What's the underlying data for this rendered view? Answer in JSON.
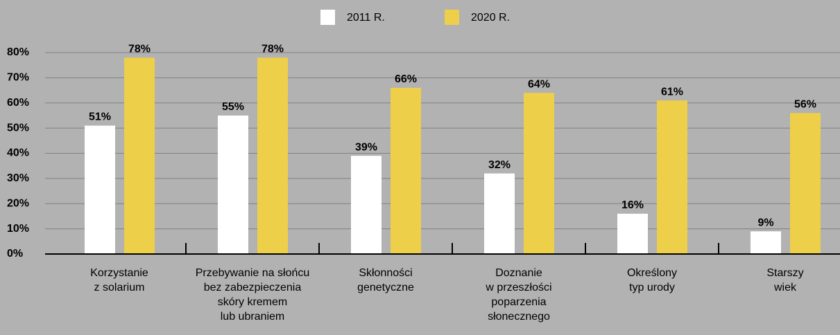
{
  "chart_data": {
    "type": "bar",
    "categories": [
      "Korzystanie\nz solarium",
      "Przebywanie na słońcu\nbez zabezpieczenia\nskóry kremem\nlub ubraniem",
      "Skłonności\ngenetyczne",
      "Doznanie\nw przeszłości\npoparzenia\nsłonecznego",
      "Określony\ntyp urody",
      "Starszy\nwiek"
    ],
    "series": [
      {
        "name": "2011 R.",
        "color": "#ffffff",
        "values": [
          51,
          55,
          39,
          32,
          16,
          9
        ],
        "value_labels": [
          "51%",
          "55%",
          "39%",
          "32%",
          "16%",
          "9%"
        ]
      },
      {
        "name": "2020 R.",
        "color": "#edcf4a",
        "values": [
          78,
          78,
          66,
          64,
          61,
          56
        ],
        "value_labels": [
          "78%",
          "78%",
          "66%",
          "64%",
          "61%",
          "56%"
        ]
      }
    ],
    "ylim": [
      0,
      80
    ],
    "yticks": [
      {
        "value": 0,
        "label": "0%"
      },
      {
        "value": 10,
        "label": "10%"
      },
      {
        "value": 20,
        "label": "20%"
      },
      {
        "value": 30,
        "label": "30%"
      },
      {
        "value": 40,
        "label": "40%"
      },
      {
        "value": 50,
        "label": "50%"
      },
      {
        "value": 60,
        "label": "60%"
      },
      {
        "value": 70,
        "label": "70%"
      },
      {
        "value": 80,
        "label": "80%"
      }
    ],
    "grid": true,
    "legend": "top"
  }
}
